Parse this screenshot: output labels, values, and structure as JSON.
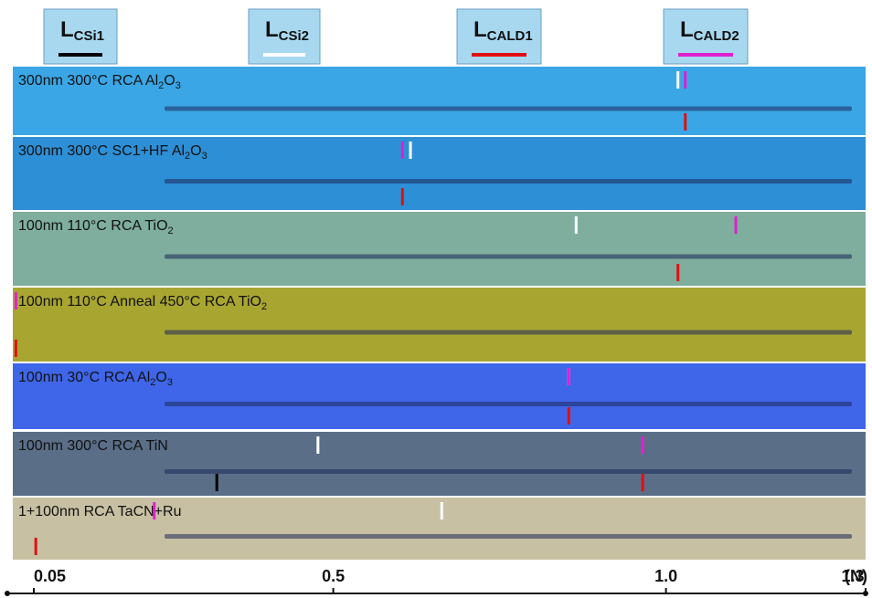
{
  "chart_data": {
    "type": "scratch",
    "series": [
      {
        "name": {
          "main": "L",
          "sub": "CSi1"
        },
        "color": "#000000"
      },
      {
        "name": {
          "main": "L",
          "sub": "CSi2"
        },
        "color": "#ffffff"
      },
      {
        "name": {
          "main": "L",
          "sub": "CALD1"
        },
        "color": "#e01010"
      },
      {
        "name": {
          "main": "L",
          "sub": "CALD2"
        },
        "color": "#e020d0"
      }
    ],
    "samples": [
      {
        "label": [
          "300nm 300°C RCA Al",
          "2",
          "O",
          "3"
        ],
        "color": "#3aa6e6",
        "loads": [
          null,
          1.018,
          1.029,
          1.029
        ]
      },
      {
        "label": [
          "300nm 300°C SC1+HF Al",
          "2",
          "O",
          "3"
        ],
        "color": "#2d8fd6",
        "loads": [
          null,
          0.616,
          0.604,
          0.604
        ]
      },
      {
        "label": [
          "100nm 110°C RCA TiO",
          "2"
        ],
        "color": "#7fae9e",
        "loads": [
          null,
          0.865,
          1.018,
          1.105
        ]
      },
      {
        "label": [
          "100nm 110°C Anneal 450°C RCA TiO",
          "2"
        ],
        "color": "#a8a531",
        "loads": [
          null,
          null,
          0.023,
          0.023
        ]
      },
      {
        "label": [
          "100nm 30°C RCA Al",
          "2",
          "O",
          "3"
        ],
        "color": "#3f66e8",
        "loads": [
          null,
          0.854,
          0.854,
          0.854
        ]
      },
      {
        "label": [
          "100nm 300°C RCA TiN"
        ],
        "color": "#5a6e88",
        "loads": [
          0.325,
          0.477,
          0.965,
          0.965
        ]
      },
      {
        "label": [
          "1+100nm RCA TaCN+Ru"
        ],
        "color": "#c7c0a2",
        "loads": [
          null,
          0.663,
          0.053,
          0.231
        ]
      }
    ],
    "xlim": [
      0.05,
      1.3
    ],
    "xticks": [
      0.05,
      0.5,
      {
        "value": 1,
        "label": "1.0"
      },
      1.3
    ],
    "x_unit": "(N)"
  }
}
